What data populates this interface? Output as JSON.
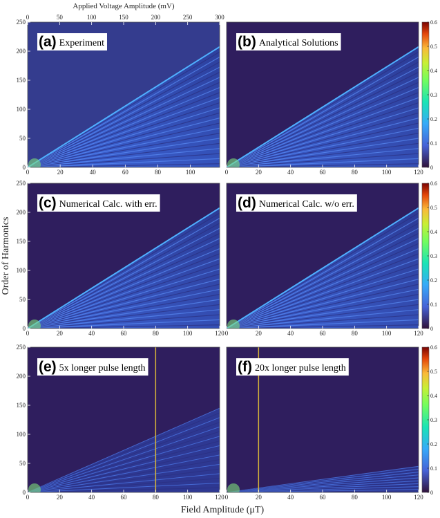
{
  "figure": {
    "x_label": "Field Amplitude (μT)",
    "y_label": "Order of Harmonics"
  },
  "chart_data": [
    {
      "type": "heatmap",
      "panel": "(a)",
      "title": "Experiment",
      "xlim": [
        0,
        118
      ],
      "xticks": [
        0,
        20,
        40,
        60,
        80,
        100
      ],
      "ylim": [
        0,
        250
      ],
      "yticks": [
        0,
        50,
        100,
        150,
        200,
        250
      ],
      "noisy": true,
      "x2lim": [
        0,
        300
      ],
      "x2ticks": [
        0,
        50,
        100,
        150,
        200,
        250,
        300
      ],
      "x2label": "Applied Voltage Amplitude  (mV)"
    },
    {
      "type": "heatmap",
      "panel": "(b)",
      "title": "Analytical Solutions",
      "xlim": [
        0,
        120
      ],
      "xticks": [
        0,
        20,
        40,
        60,
        80,
        100,
        120
      ],
      "ylim": [
        0,
        250
      ],
      "colorbar": {
        "lim": [
          0,
          0.6
        ],
        "ticks": [
          0,
          0.1,
          0.2,
          0.3,
          0.4,
          0.5,
          0.6
        ]
      }
    },
    {
      "type": "heatmap",
      "panel": "(c)",
      "title": "Numerical Calc. with err.",
      "xlim": [
        0,
        120
      ],
      "xticks": [
        0,
        20,
        40,
        60,
        80,
        100,
        120
      ],
      "ylim": [
        0,
        250
      ],
      "yticks": [
        0,
        50,
        100,
        150,
        200,
        250
      ]
    },
    {
      "type": "heatmap",
      "panel": "(d)",
      "title": "Numerical Calc. w/o err.",
      "xlim": [
        0,
        120
      ],
      "xticks": [
        0,
        20,
        40,
        60,
        80,
        100,
        120
      ],
      "ylim": [
        0,
        250
      ],
      "colorbar": {
        "lim": [
          0,
          0.6
        ],
        "ticks": [
          0,
          0.1,
          0.2,
          0.3,
          0.4,
          0.5,
          0.6
        ]
      }
    },
    {
      "type": "heatmap",
      "panel": "(e)",
      "title": "5x longer pulse length",
      "xlim": [
        0,
        120
      ],
      "xticks": [
        0,
        20,
        40,
        60,
        80,
        100,
        120
      ],
      "ylim": [
        0,
        250
      ],
      "yticks": [
        0,
        50,
        100,
        150,
        200,
        250
      ],
      "marker_x": 80,
      "marker_color": "#d4b33a"
    },
    {
      "type": "heatmap",
      "panel": "(f)",
      "title": "20x longer pulse length",
      "xlim": [
        0,
        120
      ],
      "xticks": [
        0,
        20,
        40,
        60,
        80,
        100,
        120
      ],
      "ylim": [
        0,
        250
      ],
      "marker_x": 20,
      "marker_color": "#d4b33a",
      "colorbar": {
        "lim": [
          0,
          0.6
        ],
        "ticks": [
          0,
          0.1,
          0.2,
          0.3,
          0.4,
          0.5,
          0.6
        ]
      }
    }
  ]
}
